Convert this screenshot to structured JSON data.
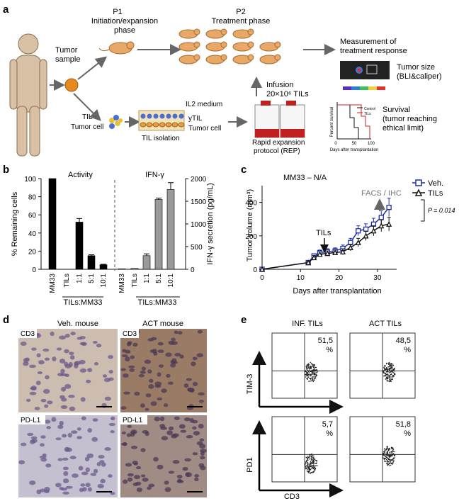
{
  "panel_a": {
    "letter": "a",
    "p1_title": "P1",
    "p1_subtitle_l1": "Initiation/expansion",
    "p1_subtitle_l2": "phase",
    "p2_title": "P2",
    "p2_subtitle": "Treatment phase",
    "tumor_sample_l1": "Tumor",
    "tumor_sample_l2": "sample",
    "measure_l1": "Measurement of",
    "measure_l2": "treatment response",
    "tumor_size_l1": "Tumor size",
    "tumor_size_l2": "(BLI&caliper)",
    "infusion_l1": "Infusion",
    "infusion_l2": "20×10⁶ TILs",
    "til_label": "TIL",
    "tumor_cell_label": "Tumor cell",
    "il2_medium": "IL2 medium",
    "ytil": "yTIL",
    "tumor_cell_label2": "Tumor cell",
    "til_isolation": "TIL isolation",
    "rep_l1": "Rapid expansion",
    "rep_l2": "protocol (REP)",
    "survival_l1": "Survival",
    "survival_l2": "(tumor reaching",
    "survival_l3": "ethical limit)",
    "survival_ylabel": "Percent survival",
    "survival_xlabel": "Days after transplantation",
    "survival_legend": [
      "Control",
      "TILs"
    ],
    "survival_ticks": [
      "0",
      "50",
      "100"
    ]
  },
  "panel_b": {
    "letter": "b",
    "left_title": "Activity",
    "right_title": "IFN-γ",
    "left_ylabel": "% Remaining cells",
    "right_ylabel": "IFN-γ secretion (pg/mL)",
    "group_label": "TILs:MM33"
  },
  "panel_c": {
    "letter": "c",
    "title": "MM33 – N/A",
    "ylabel": "Tumor volume (mm³)",
    "xlabel": "Days after transplantation",
    "tils_arrow": "TILs",
    "facs_arrow": "FACS / IHC",
    "pvalue": "P = 0.014"
  },
  "panel_d": {
    "letter": "d",
    "col1": "Veh. mouse",
    "col2": "ACT mouse",
    "row1": "CD3",
    "row2": "PD-L1"
  },
  "panel_e": {
    "letter": "e",
    "col1": "INF. TILs",
    "col2": "ACT TILs",
    "row1_axis": "TIM-3",
    "row2_axis": "PD1",
    "x_axis": "CD3",
    "values": [
      "51,5",
      "48,5",
      "5,7",
      "51,8"
    ],
    "pct": "%"
  },
  "colors": {
    "veh": "#1f2fa8",
    "tils": "#111111",
    "gray_bar": "#9a9a9a",
    "black_bar": "#000000",
    "control_red": "#cc2222"
  },
  "chart_data": [
    {
      "type": "bar",
      "name_ref": "b-activity",
      "title": "Activity",
      "ylabel": "% Remaining cells",
      "categories": [
        "MM33",
        "TILs",
        "1:1",
        "5:1",
        "10:1"
      ],
      "values": [
        100,
        0,
        52,
        15,
        5
      ],
      "errors": [
        0,
        0,
        4,
        1,
        0.5
      ],
      "ylim": [
        0,
        100
      ],
      "yticks": [
        0,
        20,
        40,
        60,
        80,
        100
      ]
    },
    {
      "type": "bar",
      "name_ref": "b-ifng",
      "title": "IFN-γ",
      "ylabel": "IFN-γ secretion (pg/mL)",
      "categories": [
        "MM33",
        "TILs",
        "1:1",
        "5:1",
        "10:1"
      ],
      "values": [
        10,
        20,
        300,
        1540,
        1760
      ],
      "errors": [
        0,
        0,
        40,
        30,
        150
      ],
      "ylim": [
        0,
        2000
      ],
      "yticks": [
        0,
        500,
        1000,
        1500,
        2000
      ]
    },
    {
      "type": "line",
      "name_ref": "c-volume",
      "title": "MM33 – N/A",
      "xlabel": "Days after transplantation",
      "ylabel": "Tumor volume (mm³)",
      "xlim": [
        0,
        35
      ],
      "ylim": [
        0,
        500
      ],
      "xticks": [
        0,
        10,
        20,
        30
      ],
      "yticks": [
        0,
        200,
        400
      ],
      "series": [
        {
          "name": "Veh.",
          "x": [
            0,
            12,
            13.5,
            15,
            17,
            19,
            21,
            23,
            25,
            27,
            29,
            31,
            33
          ],
          "y": [
            0,
            40,
            80,
            100,
            105,
            110,
            125,
            160,
            230,
            240,
            270,
            310,
            370
          ],
          "err": [
            0,
            8,
            12,
            15,
            18,
            18,
            20,
            25,
            30,
            32,
            35,
            40,
            55
          ]
        },
        {
          "name": "TILs",
          "x": [
            0,
            12,
            13.5,
            15,
            17,
            19,
            21,
            23,
            25,
            27,
            29,
            31,
            33
          ],
          "y": [
            0,
            40,
            70,
            90,
            95,
            100,
            105,
            130,
            160,
            200,
            230,
            260,
            270
          ],
          "err": [
            0,
            8,
            12,
            15,
            15,
            15,
            18,
            20,
            25,
            28,
            30,
            35,
            40
          ]
        }
      ]
    }
  ]
}
